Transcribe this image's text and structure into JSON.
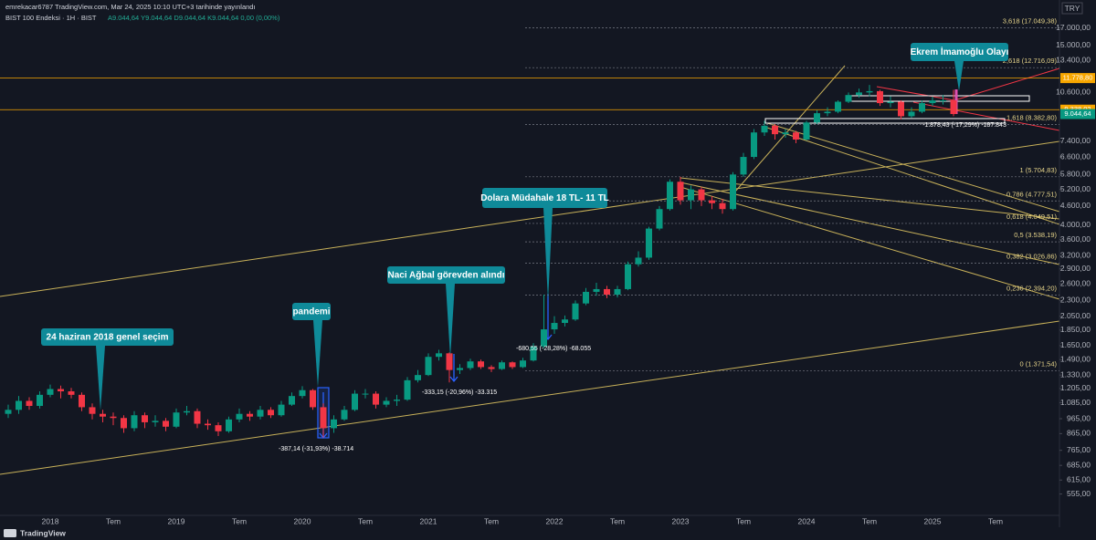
{
  "chart_data": {
    "type": "candlestick",
    "publisher": "emrekacar6787 TradingView.com, Mar 24, 2025 10:10 UTC+3 tarihinde yayınlandı",
    "title": "BIST 100 Endeksi · 1H · BIST",
    "quote": "A9.044,64 Y9.044,64 D9.044,64 K9.044,64 0,00 (0,00%)",
    "currency": "TRY",
    "footer": "TradingView",
    "log_scale": true,
    "up_color": "#089981",
    "down_color": "#f23645",
    "categories": [
      null,
      null,
      null,
      null,
      "2018",
      null,
      null,
      null,
      null,
      null,
      "Tem",
      null,
      null,
      null,
      null,
      null,
      "2019",
      null,
      null,
      null,
      null,
      null,
      "Tem",
      null,
      null,
      null,
      null,
      null,
      "2020",
      null,
      null,
      null,
      null,
      null,
      "Tem",
      null,
      null,
      null,
      null,
      null,
      "2021",
      null,
      null,
      null,
      null,
      null,
      "Tem",
      null,
      null,
      null,
      null,
      null,
      "2022",
      null,
      null,
      null,
      null,
      null,
      "Tem",
      null,
      null,
      null,
      null,
      null,
      "2023",
      null,
      null,
      null,
      null,
      null,
      "Tem",
      null,
      null,
      null,
      null,
      null,
      "2024",
      null,
      null,
      null,
      null,
      null,
      "Tem",
      null,
      null,
      null,
      null,
      null,
      "2025",
      null,
      null,
      null,
      null,
      null,
      "Tem",
      null,
      null,
      null
    ],
    "open": [
      1000,
      1030,
      1100,
      1060,
      1150,
      1200,
      1180,
      1150,
      1050,
      1000,
      980,
      970,
      900,
      990,
      940,
      950,
      910,
      1010,
      1020,
      930,
      920,
      880,
      960,
      1000,
      980,
      1030,
      990,
      1070,
      1140,
      1190,
      1050,
      900,
      960,
      1030,
      1160,
      1160,
      1070,
      1100,
      1110,
      1280,
      1330,
      1520,
      1560,
      1380,
      1400,
      1470,
      1410,
      1390,
      1460,
      1410,
      1480,
      1640,
      1860,
      1950,
      2000,
      2250,
      2450,
      2500,
      2400,
      2500,
      3000,
      3150,
      3900,
      4500,
      5500,
      4800,
      5200,
      4800,
      4700,
      4500,
      5800,
      6600,
      7900,
      8300,
      7800,
      7900,
      7500,
      8500,
      9100,
      9200,
      9900,
      10400,
      10600,
      10700,
      9800,
      9900,
      8900,
      9200,
      9800,
      10000,
      10000,
      null,
      null,
      null,
      null,
      null,
      null,
      null
    ],
    "high": [
      1070,
      1140,
      1130,
      1180,
      1240,
      1230,
      1210,
      1170,
      1080,
      1030,
      1010,
      990,
      1020,
      1010,
      990,
      970,
      1040,
      1060,
      1040,
      960,
      940,
      980,
      1040,
      1020,
      1060,
      1050,
      1100,
      1170,
      1225,
      1200,
      1080,
      990,
      1060,
      1190,
      1200,
      1180,
      1130,
      1150,
      1310,
      1380,
      1560,
      1600,
      1570,
      1440,
      1500,
      1490,
      1430,
      1480,
      1470,
      1510,
      1680,
      2400,
      2050,
      2060,
      2300,
      2520,
      2620,
      2560,
      2560,
      3060,
      3300,
      3950,
      4600,
      5600,
      5700,
      5350,
      5300,
      4950,
      4850,
      5900,
      6800,
      8100,
      8600,
      8400,
      8100,
      8000,
      8600,
      9300,
      9500,
      10000,
      10600,
      10900,
      11200,
      10800,
      10300,
      10000,
      9500,
      10000,
      10300,
      10400,
      10800,
      null,
      null,
      null,
      null,
      null,
      null,
      null
    ],
    "low": [
      970,
      1000,
      1030,
      1040,
      1130,
      1120,
      1120,
      1020,
      960,
      940,
      920,
      870,
      880,
      900,
      910,
      880,
      900,
      990,
      900,
      890,
      850,
      870,
      940,
      950,
      960,
      970,
      980,
      1060,
      1120,
      1030,
      840,
      870,
      950,
      1020,
      1120,
      1040,
      1050,
      1060,
      1100,
      1260,
      1320,
      1480,
      1260,
      1340,
      1380,
      1390,
      1360,
      1380,
      1390,
      1400,
      1470,
      1620,
      1800,
      1900,
      1980,
      2220,
      2380,
      2340,
      2350,
      2480,
      2950,
      3100,
      3850,
      4450,
      4650,
      4500,
      4600,
      4500,
      4350,
      4450,
      5700,
      6500,
      7700,
      7500,
      7600,
      7300,
      7450,
      8400,
      8900,
      9100,
      9800,
      10200,
      10300,
      9600,
      9500,
      8700,
      8800,
      9100,
      9600,
      9700,
      8900,
      null,
      null,
      null,
      null,
      null,
      null,
      null
    ],
    "close": [
      1030,
      1100,
      1060,
      1150,
      1200,
      1180,
      1150,
      1050,
      1000,
      980,
      970,
      900,
      990,
      940,
      950,
      910,
      1010,
      1020,
      930,
      920,
      880,
      960,
      1000,
      980,
      1030,
      990,
      1070,
      1140,
      1190,
      1050,
      900,
      960,
      1030,
      1160,
      1160,
      1070,
      1100,
      1110,
      1280,
      1330,
      1520,
      1560,
      1380,
      1400,
      1470,
      1410,
      1390,
      1460,
      1410,
      1480,
      1640,
      1860,
      1950,
      2000,
      2250,
      2450,
      2500,
      2400,
      2500,
      3000,
      3150,
      3900,
      4500,
      5500,
      4800,
      5200,
      4800,
      4700,
      4500,
      5800,
      6600,
      7900,
      8300,
      7800,
      7900,
      7500,
      8500,
      9100,
      9200,
      9900,
      10400,
      10600,
      10700,
      9800,
      9900,
      8900,
      9200,
      9800,
      10000,
      10000,
      9044.64,
      null,
      null,
      null,
      null,
      null,
      null,
      null
    ],
    "ylim": [
      465,
      20900
    ],
    "yticks": [
      {
        "value": 17000,
        "label": "17.000,00"
      },
      {
        "value": 15000,
        "label": "15.000,00"
      },
      {
        "value": 13400,
        "label": "13.400,00"
      },
      {
        "value": 10600,
        "label": "10.600,00"
      },
      {
        "value": 7400,
        "label": "7.400,00"
      },
      {
        "value": 6600,
        "label": "6.600,00"
      },
      {
        "value": 5800,
        "label": "5.800,00"
      },
      {
        "value": 5200,
        "label": "5.200,00"
      },
      {
        "value": 4600,
        "label": "4.600,00"
      },
      {
        "value": 4000,
        "label": "4.000,00"
      },
      {
        "value": 3600,
        "label": "3.600,00"
      },
      {
        "value": 3200,
        "label": "3.200,00"
      },
      {
        "value": 2900,
        "label": "2.900,00"
      },
      {
        "value": 2600,
        "label": "2.600,00"
      },
      {
        "value": 2300,
        "label": "2.300,00"
      },
      {
        "value": 2050,
        "label": "2.050,00"
      },
      {
        "value": 1850,
        "label": "1.850,00"
      },
      {
        "value": 1650,
        "label": "1.650,00"
      },
      {
        "value": 1490,
        "label": "1.490,00"
      },
      {
        "value": 1330,
        "label": "1.330,00"
      },
      {
        "value": 1205,
        "label": "1.205,00"
      },
      {
        "value": 1085,
        "label": "1.085,00"
      },
      {
        "value": 965,
        "label": "965,00"
      },
      {
        "value": 865,
        "label": "865,00"
      },
      {
        "value": 765,
        "label": "765,00"
      },
      {
        "value": 685,
        "label": "685,00"
      },
      {
        "value": 615,
        "label": "615,00"
      },
      {
        "value": 555,
        "label": "555,00"
      }
    ],
    "fib_levels": [
      {
        "value": 17049.38,
        "label": "3,618 (17.049,38)"
      },
      {
        "value": 12716.09,
        "label": "2,618 (12.716,09)"
      },
      {
        "value": 8382.8,
        "label": "1,618 (8.382,80)"
      },
      {
        "value": 5704.83,
        "label": "1 (5.704,83)"
      },
      {
        "value": 4777.51,
        "label": "0,786 (4.777,51)"
      },
      {
        "value": 4049.51,
        "label": "0,618 (4.049,51)"
      },
      {
        "value": 3538.19,
        "label": "0,5 (3.538,19)"
      },
      {
        "value": 3026.86,
        "label": "0,382 (3.026,86)"
      },
      {
        "value": 2394.2,
        "label": "0,236 (2.394,20)"
      },
      {
        "value": 1371.54,
        "label": "0 (1.371,54)"
      }
    ],
    "price_lines": [
      {
        "value": 11778.8,
        "label": "11.778,80",
        "color": "#f7a600",
        "line": true
      },
      {
        "value": 9338.02,
        "label": "9.338,02",
        "color": "#f7a600",
        "line": true
      },
      {
        "value": 9044.64,
        "label": "9.044,64",
        "color": "#089981",
        "line": false
      }
    ],
    "annotations": [
      "24 haziran 2018 genel seçim",
      "pandemi",
      "Naci Ağbal görevden alındı",
      "Dolara Müdahale 18 TL- 11 TL",
      "Ekrem İmamoğlu Olayı"
    ],
    "measures": [
      "-387,14 (-31,93%) -38.714",
      "-333,15 (-20,96%) -33.315",
      "-680,55 (-28,28%) -68.055",
      "-1.878,43 (-17,29%) -187.843"
    ]
  }
}
